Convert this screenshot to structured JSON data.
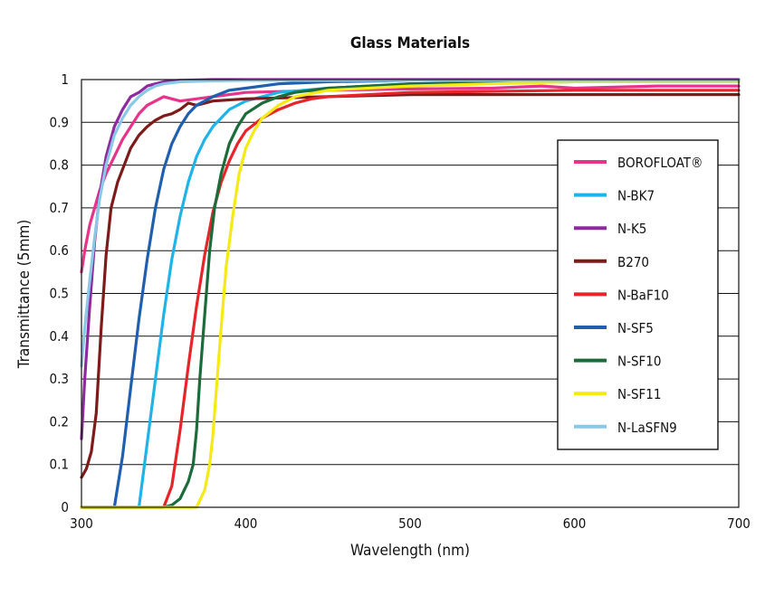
{
  "chart_data": {
    "type": "line",
    "title": "Glass Materials",
    "xlabel": "Wavelength (nm)",
    "ylabel": "Transmittance (5mm)",
    "xlim": [
      300,
      700
    ],
    "ylim": [
      0,
      1
    ],
    "xticks": [
      "300",
      "400",
      "500",
      "600",
      "700"
    ],
    "yticks": [
      "0",
      "0.1",
      "0.2",
      "0.3",
      "0.4",
      "0.5",
      "0.6",
      "0.7",
      "0.8",
      "0.9",
      "1"
    ],
    "grid": "horizontal",
    "legend_position": "right",
    "series": [
      {
        "name": "BOROFLOAT®",
        "color": "#e8338a",
        "x": [
          300,
          302,
          305,
          308,
          311,
          315,
          320,
          325,
          330,
          335,
          340,
          345,
          350,
          355,
          360,
          370,
          380,
          390,
          400,
          450,
          500,
          550,
          580,
          600,
          650,
          700
        ],
        "y": [
          0.55,
          0.6,
          0.66,
          0.7,
          0.74,
          0.78,
          0.82,
          0.86,
          0.89,
          0.92,
          0.94,
          0.95,
          0.96,
          0.955,
          0.95,
          0.955,
          0.96,
          0.965,
          0.97,
          0.975,
          0.978,
          0.98,
          0.985,
          0.98,
          0.985,
          0.985
        ]
      },
      {
        "name": "N-BK7",
        "color": "#1fb4e8",
        "x": [
          335,
          340,
          345,
          350,
          355,
          360,
          365,
          370,
          375,
          380,
          390,
          400,
          420,
          450,
          500,
          600,
          700
        ],
        "y": [
          0.0,
          0.15,
          0.3,
          0.45,
          0.58,
          0.68,
          0.76,
          0.82,
          0.86,
          0.89,
          0.93,
          0.95,
          0.97,
          0.98,
          0.99,
          0.995,
          0.995
        ]
      },
      {
        "name": "N-K5",
        "color": "#8e2a9e",
        "x": [
          300,
          302,
          305,
          308,
          311,
          315,
          320,
          325,
          330,
          335,
          340,
          345,
          350,
          360,
          380,
          400,
          500,
          700
        ],
        "y": [
          0.16,
          0.3,
          0.47,
          0.62,
          0.73,
          0.82,
          0.89,
          0.93,
          0.96,
          0.97,
          0.985,
          0.99,
          0.995,
          0.998,
          1.0,
          1.0,
          1.0,
          1.0
        ]
      },
      {
        "name": "B270",
        "color": "#7d1a1a",
        "x": [
          300,
          303,
          306,
          309,
          312,
          315,
          318,
          322,
          326,
          330,
          335,
          340,
          345,
          350,
          355,
          360,
          365,
          370,
          380,
          400,
          450,
          500,
          700
        ],
        "y": [
          0.07,
          0.09,
          0.13,
          0.22,
          0.42,
          0.59,
          0.7,
          0.76,
          0.8,
          0.84,
          0.87,
          0.89,
          0.905,
          0.915,
          0.92,
          0.93,
          0.945,
          0.94,
          0.95,
          0.955,
          0.96,
          0.965,
          0.965
        ]
      },
      {
        "name": "N-BaF10",
        "color": "#e8242b",
        "x": [
          350,
          355,
          360,
          365,
          370,
          375,
          380,
          385,
          390,
          395,
          400,
          410,
          420,
          430,
          440,
          450,
          500,
          600,
          700
        ],
        "y": [
          0.0,
          0.05,
          0.18,
          0.33,
          0.47,
          0.59,
          0.69,
          0.76,
          0.81,
          0.85,
          0.88,
          0.91,
          0.93,
          0.945,
          0.955,
          0.96,
          0.97,
          0.975,
          0.975
        ]
      },
      {
        "name": "N-SF5",
        "color": "#1f5fae",
        "x": [
          320,
          325,
          330,
          335,
          340,
          345,
          350,
          355,
          360,
          365,
          370,
          380,
          390,
          400,
          420,
          450,
          500,
          700
        ],
        "y": [
          0.0,
          0.12,
          0.28,
          0.44,
          0.58,
          0.7,
          0.79,
          0.85,
          0.89,
          0.92,
          0.94,
          0.96,
          0.975,
          0.98,
          0.99,
          0.995,
          0.998,
          0.998
        ]
      },
      {
        "name": "N-SF10",
        "color": "#1c6b3a",
        "x": [
          350,
          355,
          360,
          365,
          368,
          370,
          372,
          375,
          378,
          381,
          385,
          390,
          395,
          400,
          410,
          420,
          430,
          450,
          500,
          600,
          700
        ],
        "y": [
          0.0,
          0.005,
          0.02,
          0.06,
          0.1,
          0.18,
          0.3,
          0.45,
          0.6,
          0.7,
          0.78,
          0.85,
          0.89,
          0.92,
          0.945,
          0.96,
          0.97,
          0.98,
          0.99,
          0.995,
          0.995
        ]
      },
      {
        "name": "N-SF11",
        "color": "#f5ea14",
        "x": [
          370,
          375,
          378,
          380,
          382,
          385,
          388,
          392,
          396,
          400,
          405,
          410,
          420,
          430,
          450,
          500,
          550,
          600,
          700
        ],
        "y": [
          0.0,
          0.04,
          0.1,
          0.17,
          0.27,
          0.42,
          0.56,
          0.68,
          0.78,
          0.84,
          0.88,
          0.91,
          0.94,
          0.96,
          0.975,
          0.985,
          0.99,
          0.995,
          0.995
        ]
      },
      {
        "name": "N-LaSFN9",
        "color": "#8ac8e8",
        "x": [
          300,
          302,
          305,
          308,
          311,
          315,
          320,
          325,
          330,
          335,
          340,
          345,
          350,
          360,
          380,
          400,
          500,
          700
        ],
        "y": [
          0.33,
          0.42,
          0.53,
          0.63,
          0.72,
          0.8,
          0.87,
          0.91,
          0.94,
          0.96,
          0.975,
          0.985,
          0.99,
          0.995,
          0.997,
          0.998,
          0.998,
          0.998
        ]
      }
    ]
  }
}
